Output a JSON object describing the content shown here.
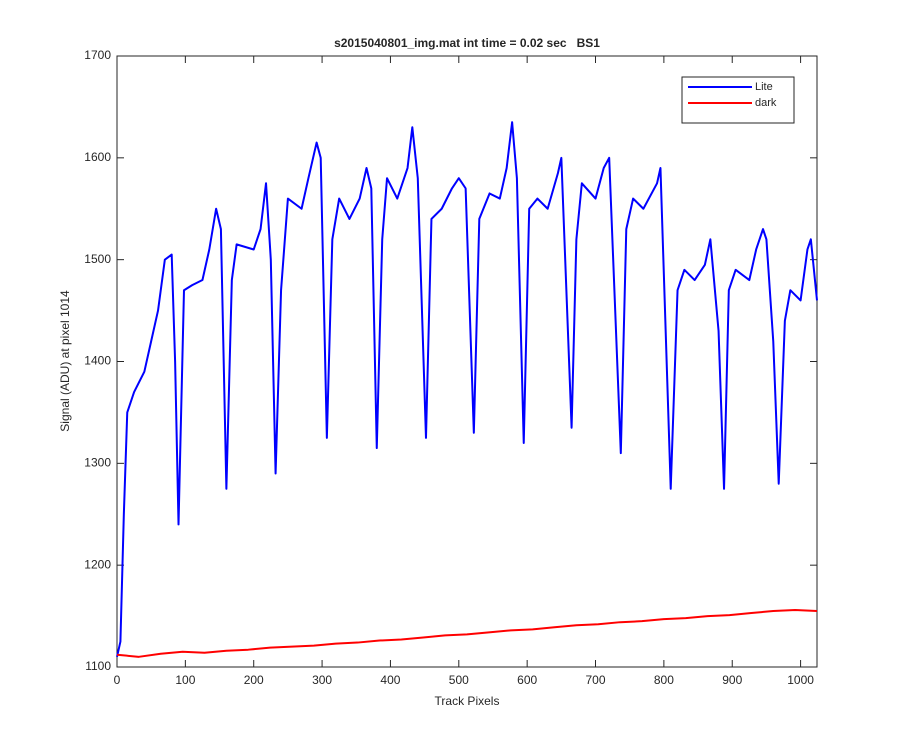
{
  "chart_data": {
    "type": "line",
    "title": "s2015040801_img.mat int time = 0.02 sec   BS1",
    "xlabel": "Track Pixels",
    "ylabel": "Signal (ADU) at pixel 1014",
    "xlim": [
      0,
      1024
    ],
    "ylim": [
      1100,
      1700
    ],
    "xticks": [
      0,
      100,
      200,
      300,
      400,
      500,
      600,
      700,
      800,
      900,
      1000
    ],
    "yticks": [
      1100,
      1200,
      1300,
      1400,
      1500,
      1600,
      1700
    ],
    "legend": "northeast",
    "grid": false,
    "series": [
      {
        "name": "Lite",
        "color": "#0000ff",
        "x": [
          0,
          5,
          10,
          15,
          25,
          40,
          50,
          60,
          70,
          80,
          85,
          90,
          98,
          110,
          125,
          135,
          145,
          152,
          160,
          168,
          175,
          200,
          210,
          218,
          225,
          232,
          240,
          250,
          270,
          280,
          292,
          298,
          307,
          315,
          325,
          340,
          355,
          365,
          372,
          380,
          388,
          395,
          410,
          425,
          432,
          440,
          452,
          460,
          475,
          490,
          500,
          510,
          522,
          530,
          545,
          560,
          570,
          578,
          585,
          595,
          603,
          615,
          630,
          645,
          650,
          665,
          672,
          680,
          700,
          712,
          720,
          737,
          745,
          755,
          770,
          790,
          795,
          810,
          820,
          830,
          845,
          860,
          868,
          880,
          888,
          895,
          905,
          925,
          935,
          945,
          950,
          960,
          968,
          977,
          985,
          1000,
          1010,
          1015,
          1024
        ],
        "values": [
          1110,
          1125,
          1250,
          1350,
          1370,
          1390,
          1420,
          1450,
          1500,
          1505,
          1400,
          1240,
          1470,
          1475,
          1480,
          1510,
          1550,
          1530,
          1275,
          1480,
          1515,
          1510,
          1530,
          1575,
          1500,
          1290,
          1470,
          1560,
          1550,
          1580,
          1615,
          1600,
          1325,
          1520,
          1560,
          1540,
          1560,
          1590,
          1570,
          1315,
          1520,
          1580,
          1560,
          1590,
          1630,
          1580,
          1325,
          1540,
          1550,
          1570,
          1580,
          1570,
          1330,
          1540,
          1565,
          1560,
          1590,
          1635,
          1580,
          1320,
          1550,
          1560,
          1550,
          1585,
          1600,
          1335,
          1520,
          1575,
          1560,
          1590,
          1600,
          1310,
          1530,
          1560,
          1550,
          1575,
          1590,
          1275,
          1470,
          1490,
          1480,
          1495,
          1520,
          1430,
          1275,
          1470,
          1490,
          1480,
          1510,
          1530,
          1520,
          1420,
          1280,
          1440,
          1470,
          1460,
          1510,
          1520,
          1460
        ]
      },
      {
        "name": "dark",
        "color": "#ff0000",
        "x": [
          0,
          32,
          64,
          96,
          128,
          160,
          192,
          224,
          256,
          288,
          320,
          352,
          384,
          416,
          448,
          480,
          512,
          544,
          576,
          608,
          640,
          672,
          704,
          736,
          768,
          800,
          832,
          864,
          896,
          928,
          960,
          992,
          1024
        ],
        "values": [
          1112,
          1110,
          1113,
          1115,
          1114,
          1116,
          1117,
          1119,
          1120,
          1121,
          1123,
          1124,
          1126,
          1127,
          1129,
          1131,
          1132,
          1134,
          1136,
          1137,
          1139,
          1141,
          1142,
          1144,
          1145,
          1147,
          1148,
          1150,
          1151,
          1153,
          1155,
          1156,
          1155
        ]
      }
    ]
  }
}
